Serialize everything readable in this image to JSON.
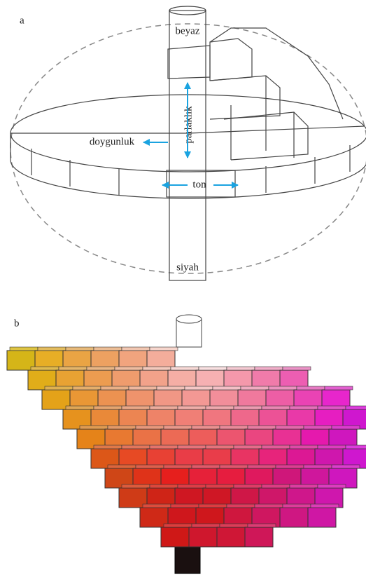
{
  "panel_a": {
    "label": "a",
    "top_label": "beyaz",
    "vertical_label": "parlaklık",
    "left_label": "doygunluk",
    "bottom_ring_label": "ton",
    "bottom_label": "siyah"
  },
  "panel_b": {
    "label": "b"
  }
}
